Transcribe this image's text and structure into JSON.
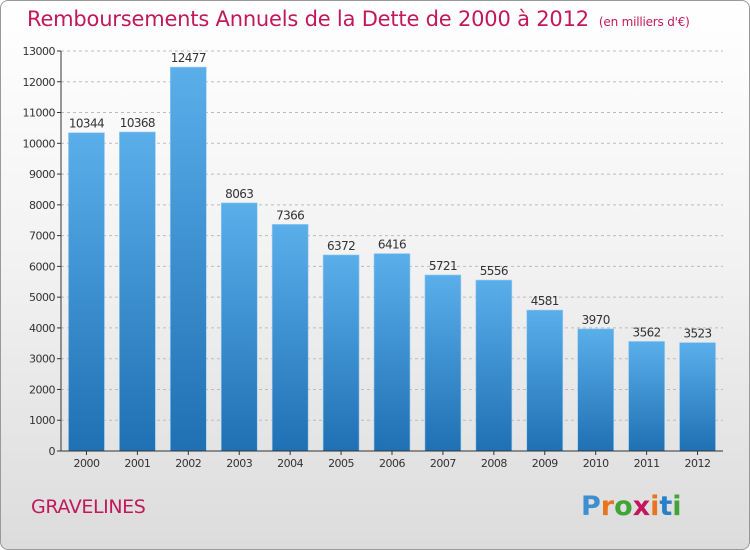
{
  "title": "Remboursements Annuels de la Dette de 2000 à 2012",
  "subtitle": "(en milliers d'€)",
  "footer_name": "GRAVELINES",
  "logo": {
    "text": "Proxiti",
    "letters": [
      "P",
      "r",
      "o",
      "x",
      "i",
      "t",
      "i"
    ],
    "colors": [
      "#3e8ed0",
      "#e8741e",
      "#3fa535",
      "#c2185b",
      "#e8741e",
      "#2a7fc9",
      "#3fa535"
    ]
  },
  "colors": {
    "title": "#c2185b",
    "bar_top": "#5aafea",
    "bar_bottom": "#1f70b4",
    "axis": "#333333",
    "grid": "#bcbcbc"
  },
  "chart_data": {
    "type": "bar",
    "categories": [
      "2000",
      "2001",
      "2002",
      "2003",
      "2004",
      "2005",
      "2006",
      "2007",
      "2008",
      "2009",
      "2010",
      "2011",
      "2012"
    ],
    "values": [
      10344,
      10368,
      12477,
      8063,
      7366,
      6372,
      6416,
      5721,
      5556,
      4581,
      3970,
      3562,
      3523
    ],
    "ylim": [
      0,
      13000
    ],
    "yticks": [
      0,
      1000,
      2000,
      3000,
      4000,
      5000,
      6000,
      7000,
      8000,
      9000,
      10000,
      11000,
      12000,
      13000
    ],
    "grid": true
  }
}
